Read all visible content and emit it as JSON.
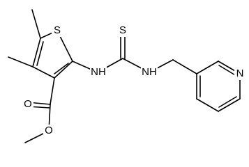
{
  "atoms": {
    "thiophene_s": "S",
    "thione_s": "S",
    "nh_left": "NH",
    "nh_right": "NH",
    "pyridine_n": "N",
    "carbonyl_o": "O",
    "ester_o": "O"
  }
}
